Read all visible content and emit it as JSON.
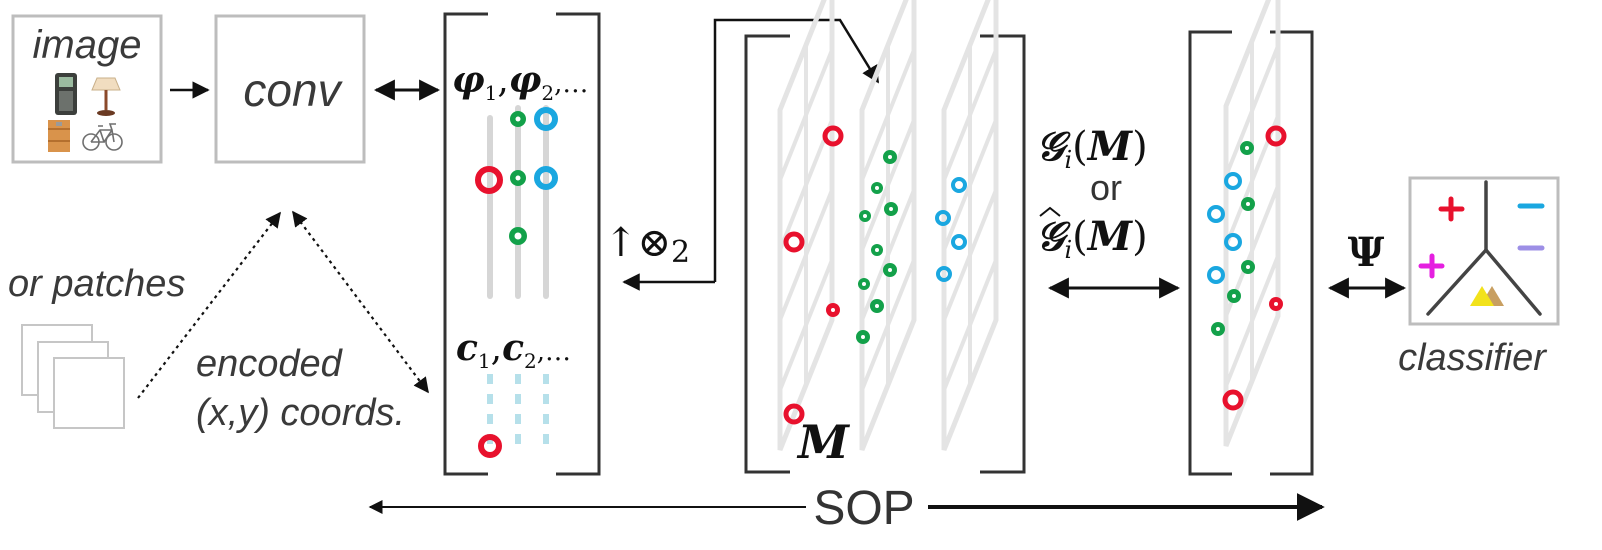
{
  "labels": {
    "image": "image",
    "conv": "conv",
    "or_patches": "or patches",
    "encoded": "encoded",
    "coords": "(x,y) coords.",
    "phi": "φ1,φ2,…",
    "c": "c1,c2,…",
    "M": "M",
    "upotimes": "↑⊗2",
    "G": "𝒢i(M)",
    "or": "or",
    "Ghat": "𝒢̂i(M)",
    "Psi": "Ψ",
    "classifier": "classifier",
    "sop": "SOP"
  },
  "colors": {
    "red": "#e8112d",
    "green": "#13a14a",
    "blue": "#1aa7e0",
    "magenta": "#e51fe0",
    "lavender": "#9d8fe6",
    "gray_box": "#bdbdbd",
    "grid": "#e2e2e2"
  },
  "icons": [
    "calculator-icon",
    "lamp-icon",
    "cabinet-icon",
    "bicycle-icon"
  ]
}
